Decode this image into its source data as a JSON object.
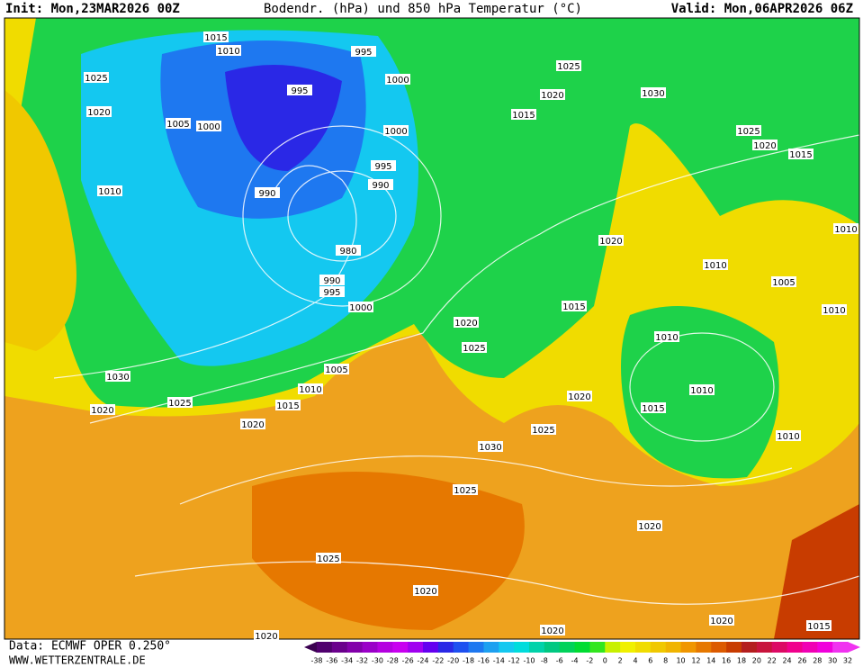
{
  "header": {
    "init": "Init: Mon,23MAR2026 00Z",
    "title": "Bodendr. (hPa) und 850 hPa Temperatur (°C)",
    "valid": "Valid: Mon,06APR2026 06Z"
  },
  "footer": {
    "source": "Data: ECMWF OPER 0.250°",
    "site": "WWW.WETTERZENTRALE.DE"
  },
  "isobar_labels": [
    "1015",
    "1010",
    "995",
    "1025",
    "995",
    "1000",
    "1020",
    "1005",
    "1000",
    "1000",
    "995",
    "1010",
    "990",
    "990",
    "980",
    "990",
    "995",
    "1000",
    "1030",
    "1025",
    "1020",
    "1020",
    "1015",
    "1010",
    "1005",
    "1020",
    "1025",
    "1015",
    "1020",
    "1010",
    "1005",
    "1010",
    "1010",
    "1010",
    "1015",
    "1010",
    "1020",
    "1025",
    "1030",
    "1025",
    "1020",
    "1025",
    "1020",
    "1020",
    "1020",
    "1015",
    "1025",
    "1020",
    "1030",
    "1015",
    "1025",
    "1020",
    "1015",
    "1010",
    "1020"
  ],
  "scale": {
    "ticks": [
      -38,
      -36,
      -34,
      -32,
      -30,
      -28,
      -26,
      -24,
      -22,
      -20,
      -18,
      -16,
      -14,
      -12,
      -10,
      -8,
      -6,
      -4,
      -2,
      0,
      2,
      4,
      6,
      8,
      10,
      12,
      14,
      16,
      18,
      20,
      22,
      24,
      26,
      28,
      30,
      32
    ],
    "colors": [
      "#3a0050",
      "#50006e",
      "#6a008c",
      "#8200aa",
      "#9a00c8",
      "#b400e0",
      "#c800f0",
      "#a000f0",
      "#6400f0",
      "#2a28e6",
      "#1e50f0",
      "#1e78f0",
      "#1ea0f0",
      "#14c8f0",
      "#00dcdc",
      "#00d2aa",
      "#00c882",
      "#00d25a",
      "#00dc32",
      "#32e61e",
      "#c8f000",
      "#f0f000",
      "#f0dc00",
      "#f0c800",
      "#f0b400",
      "#f09600",
      "#e67800",
      "#dc5a00",
      "#c83c00",
      "#b41e1e",
      "#c8143c",
      "#dc0a64",
      "#f0008c",
      "#f000b4",
      "#f000dc",
      "#f032f0"
    ]
  }
}
